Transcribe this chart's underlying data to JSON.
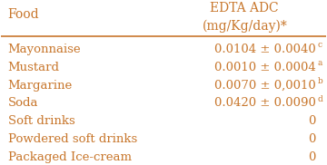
{
  "col_header_line1": "EDTA ADC",
  "col_header_line2": "(mg/Kg/day)*",
  "col1_header": "Food",
  "rows": [
    {
      "food": "Mayonnaise",
      "value": "0.0104 ± 0.0040",
      "superscript": "c"
    },
    {
      "food": "Mustard",
      "value": "0.0010 ± 0.0004",
      "superscript": "a"
    },
    {
      "food": "Margarine",
      "value": "0.0070 ± 0,0010",
      "superscript": "b"
    },
    {
      "food": "Soda",
      "value": "0.0420 ± 0.0090",
      "superscript": "d"
    },
    {
      "food": "Soft drinks",
      "value": "0",
      "superscript": ""
    },
    {
      "food": "Powdered soft drinks",
      "value": "0",
      "superscript": ""
    },
    {
      "food": "Packaged Ice-cream",
      "value": "0",
      "superscript": ""
    }
  ],
  "text_color": "#C8762B",
  "bg_color": "#FFFFFF",
  "font_size": 9.5,
  "header_font_size": 10
}
